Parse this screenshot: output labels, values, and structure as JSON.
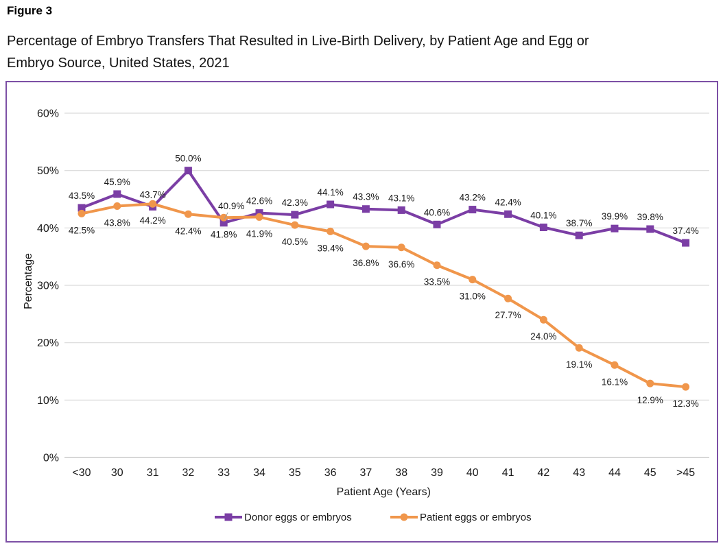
{
  "header": {
    "figure_label": "Figure 3",
    "title_lines": [
      "Percentage of Embryo Transfers That Resulted in Live-Birth Delivery, by Patient Age and Egg or",
      "Embryo Source, United States, 2021"
    ]
  },
  "chart_data": {
    "type": "line",
    "title": "Percentage of Embryo Transfers That Resulted in Live-Birth Delivery, by Patient Age and Egg or Embryo Source, United States, 2021",
    "xlabel": "Patient Age (Years)",
    "ylabel": "Percentage",
    "ylim": [
      0,
      60
    ],
    "ytick_step": 10,
    "ytick_suffix": "%",
    "grid": true,
    "legend_position": "bottom",
    "categories": [
      "<30",
      "30",
      "31",
      "32",
      "33",
      "34",
      "35",
      "36",
      "37",
      "38",
      "39",
      "40",
      "41",
      "42",
      "43",
      "44",
      "45",
      ">45"
    ],
    "series": [
      {
        "name": "Donor eggs or embryos",
        "color": "#7B3EA5",
        "marker": "square",
        "label_position": "above",
        "values": [
          43.5,
          45.9,
          43.7,
          50.0,
          40.9,
          42.6,
          42.3,
          44.1,
          43.3,
          43.1,
          40.6,
          43.2,
          42.4,
          40.1,
          38.7,
          39.9,
          39.8,
          37.4
        ]
      },
      {
        "name": "Patient eggs or embryos",
        "color": "#F0964B",
        "marker": "circle",
        "label_position": "below",
        "values": [
          42.5,
          43.8,
          44.2,
          42.4,
          41.8,
          41.9,
          40.5,
          39.4,
          36.8,
          36.6,
          33.5,
          31.0,
          27.7,
          24.0,
          19.1,
          16.1,
          12.9,
          12.3
        ]
      }
    ],
    "label_adjustments": [
      {
        "series": 0,
        "index": 4,
        "dx": 11,
        "dy": -7,
        "leader": true
      }
    ],
    "colors": {
      "border": "#7C4FA5",
      "gridline": "#D9D9D9",
      "axis_line": "#BFBFBF",
      "label_text": "#1A1A1A",
      "tick_text": "#1A1A1A"
    }
  }
}
